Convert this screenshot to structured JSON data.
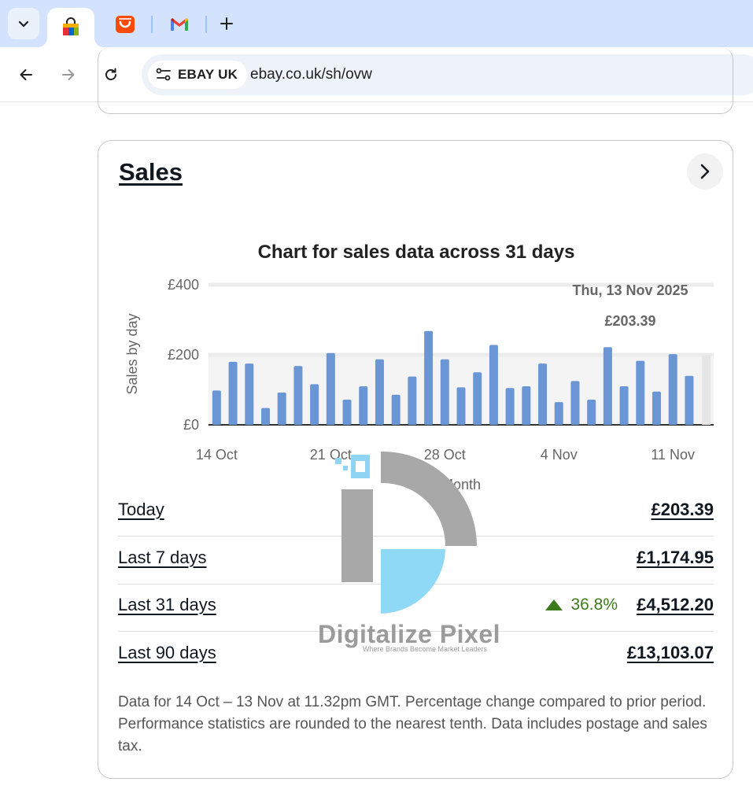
{
  "browser": {
    "tabs": [
      {
        "name": "ebay-shopping-bag",
        "icon": "shopping-bag-icon",
        "active": true
      },
      {
        "name": "aliexpress",
        "icon": "aliexpress-icon",
        "active": false
      },
      {
        "name": "gmail",
        "icon": "gmail-icon",
        "active": false
      }
    ],
    "site_chip": "EBAY UK",
    "url": "ebay.co.uk/sh/ovw"
  },
  "sales_card": {
    "title": "Sales",
    "chart_title": "Chart for sales data across 31 days",
    "tooltip_date": "Thu, 13 Nov 2025",
    "tooltip_value": "£203.39",
    "metrics": [
      {
        "label": "Today",
        "value": "£203.39"
      },
      {
        "label": "Last 7 days",
        "value": "£1,174.95"
      },
      {
        "label": "Last 31 days",
        "change": "36.8%",
        "value": "£4,512.20"
      },
      {
        "label": "Last 90 days",
        "value": "£13,103.07"
      }
    ],
    "footnote": "Data for 14 Oct – 13 Nov at 11.32pm GMT. Percentage change compared to prior period. Performance statistics are rounded to the nearest tenth. Data includes postage and sales tax."
  },
  "watermark": {
    "brand": "Digitalize Pixel",
    "tagline": "Where Brands Become Market Leaders"
  },
  "chart_data": {
    "type": "bar",
    "title": "Chart for sales data across 31 days",
    "xlabel": "Month",
    "ylabel": "Sales by day",
    "ylim": [
      0,
      400
    ],
    "y_ticks": [
      "£0",
      "£200",
      "£400"
    ],
    "y_tick_values": [
      0,
      200,
      400
    ],
    "x_tick_labels": [
      "14 Oct",
      "21 Oct",
      "28 Oct",
      "4 Nov",
      "11 Nov"
    ],
    "x_tick_indices": [
      0,
      7,
      14,
      21,
      28
    ],
    "categories": [
      "14 Oct",
      "15 Oct",
      "16 Oct",
      "17 Oct",
      "18 Oct",
      "19 Oct",
      "20 Oct",
      "21 Oct",
      "22 Oct",
      "23 Oct",
      "24 Oct",
      "25 Oct",
      "26 Oct",
      "27 Oct",
      "28 Oct",
      "29 Oct",
      "30 Oct",
      "31 Oct",
      "1 Nov",
      "2 Nov",
      "3 Nov",
      "4 Nov",
      "5 Nov",
      "6 Nov",
      "7 Nov",
      "8 Nov",
      "9 Nov",
      "10 Nov",
      "11 Nov",
      "12 Nov",
      "13 Nov"
    ],
    "values": [
      98,
      180,
      175,
      48,
      92,
      168,
      116,
      205,
      72,
      110,
      187,
      86,
      138,
      268,
      187,
      107,
      150,
      228,
      105,
      110,
      175,
      65,
      125,
      72,
      222,
      110,
      183,
      95,
      202,
      140,
      203.39
    ],
    "highlighted_index": 30,
    "bar_color": "#6a96d6",
    "highlight_color": "#e6e6e6"
  }
}
